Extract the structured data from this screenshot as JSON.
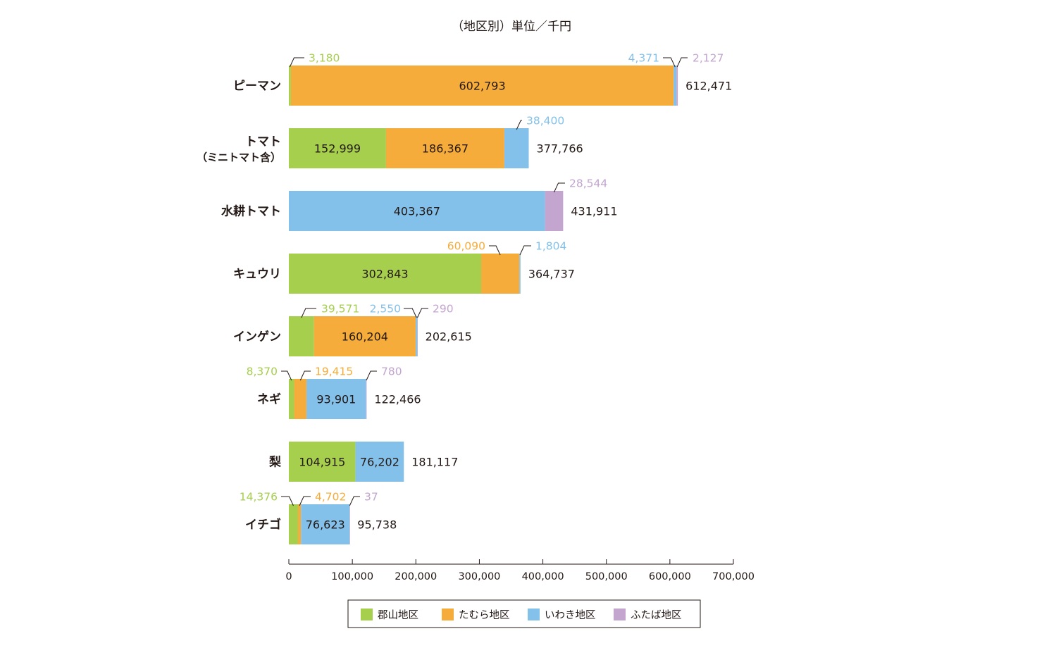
{
  "chart_data": {
    "type": "bar",
    "orientation": "horizontal",
    "stacked": true,
    "title": "（地区別）単位／千円",
    "xlabel": "",
    "ylabel": "",
    "xlim": [
      0,
      700000
    ],
    "ticks": [
      0,
      100000,
      200000,
      300000,
      400000,
      500000,
      600000,
      700000
    ],
    "tick_labels": [
      "0",
      "100,000",
      "200,000",
      "300,000",
      "400,000",
      "500,000",
      "600,000",
      "700,000"
    ],
    "grid": false,
    "legend_position": "bottom",
    "categories": [
      [
        "ピーマン"
      ],
      [
        "トマト",
        "（ミニトマト含）"
      ],
      [
        "水耕トマト"
      ],
      [
        "キュウリ"
      ],
      [
        "インゲン"
      ],
      [
        "ネギ"
      ],
      [
        "梨"
      ],
      [
        "イチゴ"
      ]
    ],
    "series": [
      {
        "name": "郡山地区",
        "color": "#a5cf4c",
        "values": [
          3180,
          152999,
          0,
          302843,
          39571,
          8370,
          104915,
          14376
        ]
      },
      {
        "name": "たむら地区",
        "color": "#f5ac3a",
        "values": [
          602793,
          186367,
          0,
          60090,
          160204,
          19415,
          0,
          4702
        ]
      },
      {
        "name": "いわき地区",
        "color": "#84c1ea",
        "values": [
          4371,
          38400,
          403367,
          1804,
          2550,
          93901,
          76202,
          76623
        ]
      },
      {
        "name": "ふたば地区",
        "color": "#c3a5cf",
        "values": [
          2127,
          0,
          28544,
          0,
          290,
          780,
          0,
          37
        ]
      }
    ],
    "totals": [
      612471,
      377766,
      431911,
      364737,
      202615,
      122466,
      181117,
      95738
    ],
    "value_labels": [
      [
        "3,180",
        "602,793",
        "4,371",
        "2,127"
      ],
      [
        "152,999",
        "186,367",
        "38,400",
        ""
      ],
      [
        "",
        "",
        "403,367",
        "28,544"
      ],
      [
        "302,843",
        "60,090",
        "1,804",
        ""
      ],
      [
        "39,571",
        "160,204",
        "2,550",
        "290"
      ],
      [
        "8,370",
        "19,415",
        "93,901",
        "780"
      ],
      [
        "104,915",
        "",
        "76,202",
        ""
      ],
      [
        "14,376",
        "4,702",
        "76,623",
        "37"
      ]
    ],
    "total_labels": [
      "612,471",
      "377,766",
      "431,911",
      "364,737",
      "202,615",
      "122,466",
      "181,117",
      "95,738"
    ]
  }
}
